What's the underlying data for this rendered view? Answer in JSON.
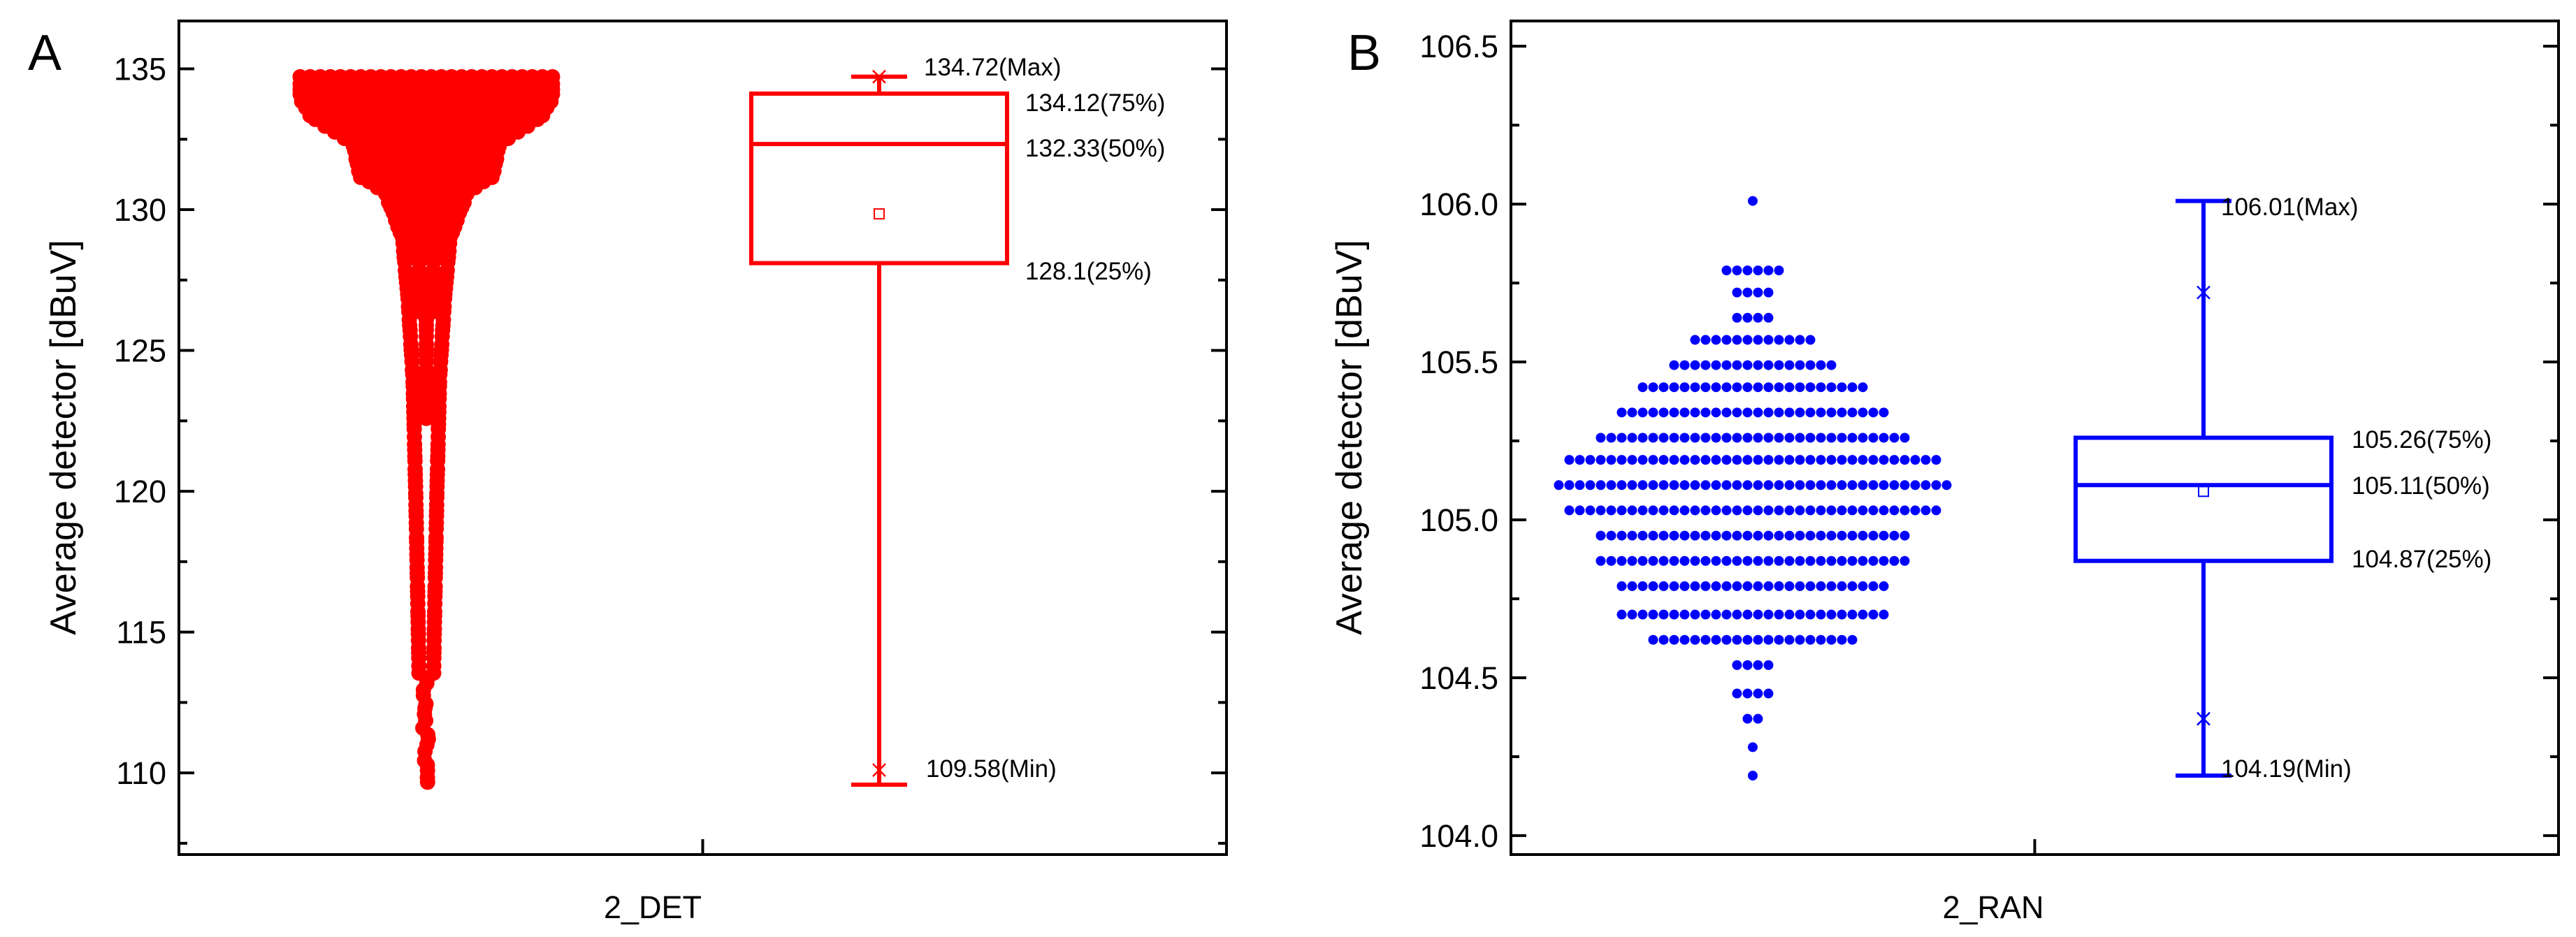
{
  "chart_data": [
    {
      "type": "box-swarm",
      "panel": "A",
      "category": "2_DET",
      "ylabel": "Average detector [dBuV]",
      "ylim": [
        107.1,
        136.7
      ],
      "yticks": [
        110,
        115,
        120,
        125,
        130,
        135
      ],
      "minor_ticks": true,
      "color": "#ff0000",
      "box": {
        "max": 134.72,
        "q3": 134.12,
        "median": 132.33,
        "q1": 128.1,
        "min": 109.58,
        "mean": 129.85,
        "p99": 134.72,
        "p1": 110.1,
        "labels": {
          "max": "134.72(Max)",
          "q3": "134.12(75%)",
          "median": "132.33(50%)",
          "q1": "128.1(25%)",
          "min": "109.58(Min)"
        }
      },
      "swarm_profile": [
        [
          134.7,
          0.95
        ],
        [
          133.9,
          0.95
        ],
        [
          133.2,
          0.85
        ],
        [
          132.3,
          0.55
        ],
        [
          131.2,
          0.5
        ],
        [
          130.5,
          0.3
        ],
        [
          129.0,
          0.18
        ],
        [
          127.0,
          0.14
        ],
        [
          124.0,
          0.1
        ],
        [
          120.0,
          0.08
        ],
        [
          115.0,
          0.06
        ],
        [
          112.0,
          0.05
        ],
        [
          109.6,
          0.04
        ]
      ]
    },
    {
      "type": "box-swarm",
      "panel": "B",
      "category": "2_RAN",
      "ylabel": "Average detector [dBuV]",
      "ylim": [
        103.94,
        106.58
      ],
      "yticks": [
        104.0,
        104.5,
        105.0,
        105.5,
        106.0,
        106.5
      ],
      "ytick_labels": [
        "104.0",
        "104.5",
        "105.0",
        "105.5",
        "106.0",
        "106.5"
      ],
      "minor_ticks": true,
      "color": "#0000ff",
      "box": {
        "max": 106.01,
        "q3": 105.26,
        "median": 105.11,
        "q1": 104.87,
        "min": 104.19,
        "mean": 105.09,
        "p99": 105.72,
        "p1": 104.37,
        "labels": {
          "max": "106.01(Max)",
          "q3": "105.26(75%)",
          "median": "105.11(50%)",
          "q1": "104.87(25%)",
          "min": "104.19(Min)"
        }
      },
      "swarm_values": [
        104.19,
        104.28,
        104.37,
        104.45,
        104.54,
        104.62,
        104.7,
        104.79,
        104.87,
        104.95,
        105.03,
        105.11,
        105.19,
        105.26,
        105.34,
        105.42,
        105.49,
        105.57,
        105.64,
        105.72,
        105.79,
        106.01
      ],
      "swarm_counts": [
        1,
        1,
        2,
        4,
        4,
        20,
        26,
        26,
        30,
        30,
        36,
        38,
        36,
        30,
        26,
        22,
        16,
        12,
        4,
        4,
        6,
        1
      ]
    }
  ]
}
